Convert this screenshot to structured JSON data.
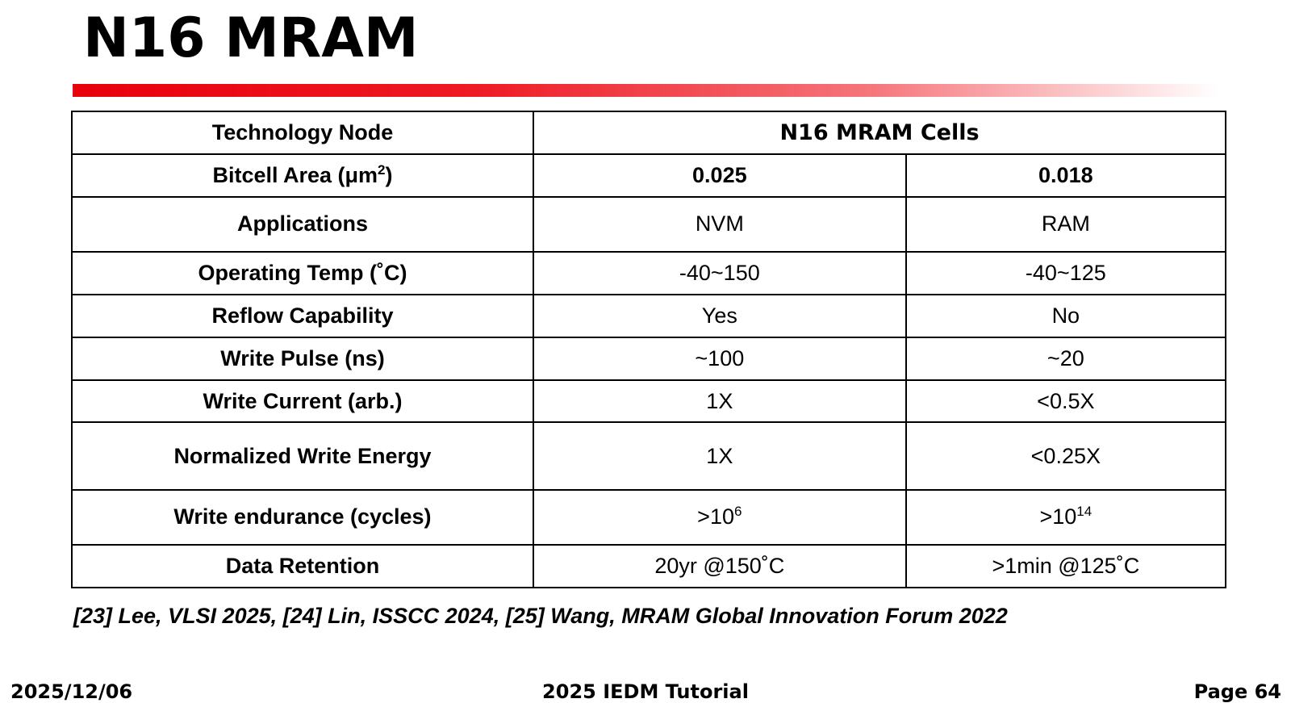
{
  "title": "N16 MRAM",
  "table": {
    "header": {
      "label": "Technology Node",
      "value": "N16 MRAM Cells"
    },
    "bitcell": {
      "label_prefix": "Bitcell Area (",
      "label_unit": "μm",
      "label_exp": "2",
      "label_suffix": ")",
      "col1": "0.025",
      "col2": "0.018"
    },
    "rows": [
      {
        "label": "Applications",
        "col1": "NVM",
        "col2": "RAM"
      },
      {
        "label": "Operating Temp (˚C)",
        "col1": "-40~150",
        "col2": "-40~125"
      },
      {
        "label": "Reflow Capability",
        "col1": "Yes",
        "col2": "No"
      },
      {
        "label": "Write Pulse (ns)",
        "col1": "~100",
        "col2": "~20"
      },
      {
        "label": "Write Current (arb.)",
        "col1": "1X",
        "col2": "<0.5X"
      },
      {
        "label": "Normalized Write Energy",
        "col1": "1X",
        "col2": "<0.25X"
      }
    ],
    "endurance": {
      "label": "Write endurance (cycles)",
      "col1_base": ">10",
      "col1_exp": "6",
      "col2_base": ">10",
      "col2_exp": "14"
    },
    "retention": {
      "label": "Data Retention",
      "col1": "20yr @150˚C",
      "col2": ">1min @125˚C"
    }
  },
  "references": "[23] Lee, VLSI 2025, [24] Lin, ISSCC 2024, [25] Wang, MRAM Global Innovation Forum 2022",
  "footer": {
    "date": "2025/12/06",
    "event": "2025 IEDM Tutorial",
    "page": "Page 64"
  },
  "colors": {
    "title_bar_start": "#e8000b",
    "title_bar_end": "#ffffff"
  }
}
